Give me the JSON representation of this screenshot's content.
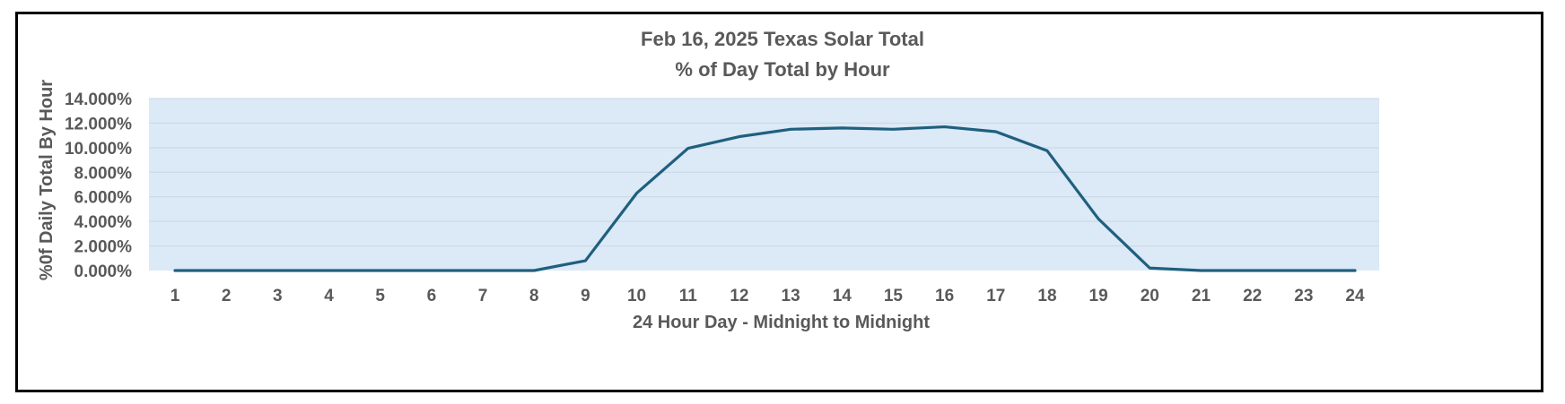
{
  "chart_data": {
    "type": "line",
    "title": "Feb 16, 2025 Texas Solar Total",
    "subtitle": "% of Day Total by Hour",
    "xlabel": "24 Hour Day - Midnight to Midnight",
    "ylabel": "%0f Daily Total By Hour",
    "ylim": [
      0,
      14
    ],
    "y_ticks": [
      0,
      2,
      4,
      6,
      8,
      10,
      12,
      14
    ],
    "y_tick_labels": [
      "0.000%",
      "2.000%",
      "4.000%",
      "6.000%",
      "8.000%",
      "10.000%",
      "12.000%",
      "14.000%"
    ],
    "categories": [
      "1",
      "2",
      "3",
      "4",
      "5",
      "6",
      "7",
      "8",
      "9",
      "10",
      "11",
      "12",
      "13",
      "14",
      "15",
      "16",
      "17",
      "18",
      "19",
      "20",
      "21",
      "22",
      "23",
      "24"
    ],
    "series": [
      {
        "values": [
          0,
          0,
          0,
          0,
          0,
          0,
          0,
          0,
          0.8,
          6.3,
          9.95,
          10.9,
          11.5,
          11.6,
          11.5,
          11.7,
          11.3,
          9.75,
          4.2,
          0.2,
          0,
          0,
          0,
          0
        ]
      }
    ],
    "grid": true,
    "legend": "none",
    "colors": {
      "line": "#1F5F7F",
      "plot_background": "#DCE9F6",
      "gridline": "#C9D7E6",
      "text": "#595959",
      "frame": "#000000"
    }
  }
}
